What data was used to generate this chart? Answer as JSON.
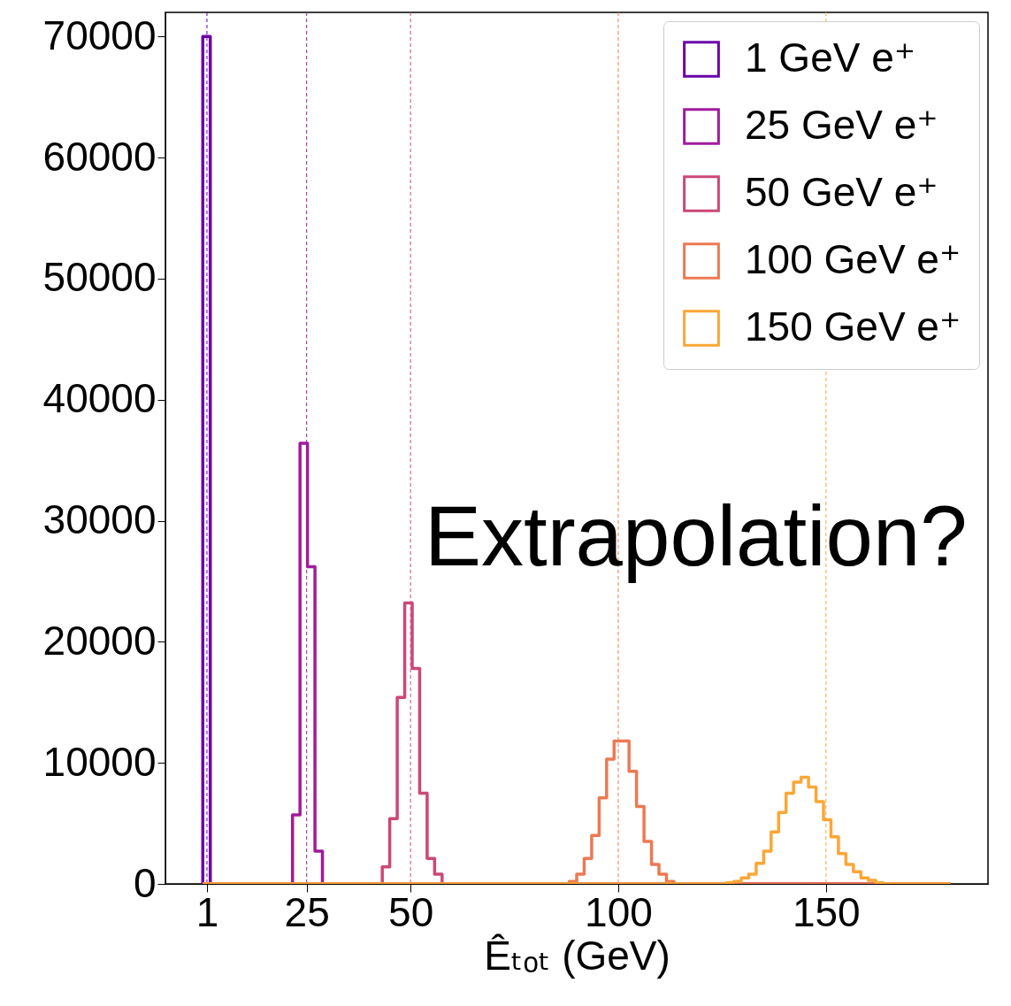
{
  "chart_data": {
    "type": "histogram",
    "xlabel": "Êₜₒₜ (GeV)",
    "xlim": [
      -9,
      189
    ],
    "ylim": [
      0,
      72000
    ],
    "xticks": [
      1,
      25,
      50,
      100,
      150
    ],
    "yticks": [
      0,
      10000,
      20000,
      30000,
      40000,
      50000,
      60000,
      70000
    ],
    "legend": "top right",
    "annotations": [
      "Extrapolation?"
    ],
    "bins": [
      0,
      1.8,
      3.6,
      5.4,
      7.2,
      9,
      10.8,
      12.6,
      14.4,
      16.2,
      18,
      19.8,
      21.6,
      23.4,
      25.2,
      27,
      28.8,
      30.6,
      32.4,
      34.2,
      36,
      37.8,
      39.6,
      41.4,
      43.2,
      45,
      46.8,
      48.6,
      50.4,
      52.2,
      54,
      55.8,
      57.6,
      59.4,
      61.2,
      63,
      64.8,
      66.6,
      68.4,
      70.2,
      72,
      73.8,
      75.6,
      77.4,
      79.2,
      81,
      82.8,
      84.6,
      86.4,
      88.2,
      90,
      91.8,
      93.6,
      95.4,
      97.2,
      99,
      100.8,
      102.6,
      104.4,
      106.2,
      108,
      109.8,
      111.6,
      113.4,
      115.2,
      117,
      118.8,
      120.6,
      122.4,
      124.2,
      126,
      127.8,
      129.6,
      131.4,
      133.2,
      135,
      136.8,
      138.6,
      140.4,
      142.2,
      144,
      145.8,
      147.6,
      149.4,
      151.2,
      153,
      154.8,
      156.6,
      158.4,
      160.2,
      162,
      163.8,
      165.6,
      167.4,
      169.2,
      171,
      172.8,
      174.6,
      176.4,
      178.2,
      180
    ],
    "series": [
      {
        "name": "1 GeV e⁺",
        "color": "#6a00a8",
        "values": [
          70000,
          0,
          0,
          0,
          0,
          0,
          0,
          0,
          0,
          0,
          0,
          0,
          0,
          0,
          0,
          0,
          0,
          0,
          0,
          0,
          0,
          0,
          0,
          0,
          0,
          0,
          0,
          0,
          0,
          0,
          0,
          0,
          0,
          0,
          0,
          0,
          0,
          0,
          0,
          0,
          0,
          0,
          0,
          0,
          0,
          0,
          0,
          0,
          0,
          0,
          0,
          0,
          0,
          0,
          0,
          0,
          0,
          0,
          0,
          0,
          0,
          0,
          0,
          0,
          0,
          0,
          0,
          0,
          0,
          0,
          0,
          0,
          0,
          0,
          0,
          0,
          0,
          0,
          0,
          0,
          0,
          0,
          0,
          0,
          0,
          0,
          0,
          0,
          0,
          0,
          0,
          0,
          0,
          0,
          0,
          0,
          0,
          0,
          0,
          0
        ]
      },
      {
        "name": "25 GeV e⁺",
        "color": "#a11b9b",
        "values": [
          0,
          0,
          0,
          0,
          0,
          0,
          0,
          0,
          0,
          0,
          0,
          0,
          5700,
          36400,
          26200,
          2700,
          0,
          0,
          0,
          0,
          0,
          0,
          0,
          0,
          0,
          0,
          0,
          0,
          0,
          0,
          0,
          0,
          0,
          0,
          0,
          0,
          0,
          0,
          0,
          0,
          0,
          0,
          0,
          0,
          0,
          0,
          0,
          0,
          0,
          0,
          0,
          0,
          0,
          0,
          0,
          0,
          0,
          0,
          0,
          0,
          0,
          0,
          0,
          0,
          0,
          0,
          0,
          0,
          0,
          0,
          0,
          0,
          0,
          0,
          0,
          0,
          0,
          0,
          0,
          0,
          0,
          0,
          0,
          0,
          0,
          0,
          0,
          0,
          0,
          0,
          0,
          0,
          0,
          0,
          0,
          0,
          0,
          0,
          0,
          0
        ]
      },
      {
        "name": "50 GeV e⁺",
        "color": "#cc4778",
        "values": [
          0,
          0,
          0,
          0,
          0,
          0,
          0,
          0,
          0,
          0,
          0,
          0,
          0,
          0,
          0,
          0,
          0,
          0,
          0,
          0,
          0,
          0,
          0,
          0,
          1400,
          5400,
          15400,
          23200,
          17800,
          7500,
          2100,
          800,
          0,
          0,
          0,
          0,
          0,
          0,
          0,
          0,
          0,
          0,
          0,
          0,
          0,
          0,
          0,
          0,
          0,
          0,
          0,
          0,
          0,
          0,
          0,
          0,
          0,
          0,
          0,
          0,
          0,
          0,
          0,
          0,
          0,
          0,
          0,
          0,
          0,
          0,
          0,
          0,
          0,
          0,
          0,
          0,
          0,
          0,
          0,
          0,
          0,
          0,
          0,
          0,
          0,
          0,
          0,
          0,
          0,
          0,
          0,
          0,
          0,
          0,
          0,
          0,
          0,
          0,
          0,
          0
        ]
      },
      {
        "name": "100 GeV e⁺",
        "color": "#ed7953",
        "values": [
          0,
          0,
          0,
          0,
          0,
          0,
          0,
          0,
          0,
          0,
          0,
          0,
          0,
          0,
          0,
          0,
          0,
          0,
          0,
          0,
          0,
          0,
          0,
          0,
          0,
          0,
          0,
          0,
          0,
          0,
          0,
          0,
          0,
          0,
          0,
          0,
          0,
          0,
          0,
          0,
          0,
          0,
          0,
          0,
          0,
          0,
          0,
          0,
          0,
          200,
          800,
          2100,
          4000,
          7100,
          10300,
          11800,
          11800,
          9300,
          6400,
          3500,
          1600,
          800,
          200,
          0,
          0,
          0,
          0,
          0,
          0,
          0,
          0,
          0,
          0,
          0,
          0,
          0,
          0,
          0,
          0,
          0,
          0,
          0,
          0,
          0,
          0,
          0,
          0,
          0,
          0,
          0,
          0,
          0,
          0,
          0,
          0,
          0,
          0,
          0,
          0,
          0
        ]
      },
      {
        "name": "150 GeV e⁺",
        "color": "#fca636",
        "values": [
          0,
          0,
          0,
          0,
          0,
          0,
          0,
          0,
          0,
          0,
          0,
          0,
          0,
          0,
          0,
          0,
          0,
          0,
          0,
          0,
          0,
          0,
          0,
          0,
          0,
          0,
          0,
          0,
          0,
          0,
          0,
          0,
          0,
          0,
          0,
          0,
          0,
          0,
          0,
          0,
          0,
          0,
          0,
          0,
          0,
          0,
          0,
          0,
          0,
          0,
          0,
          0,
          0,
          0,
          0,
          0,
          0,
          0,
          0,
          0,
          0,
          0,
          0,
          0,
          0,
          0,
          0,
          0,
          0,
          0,
          100,
          200,
          500,
          800,
          1700,
          2700,
          4300,
          5900,
          7500,
          8400,
          8800,
          8000,
          6800,
          5300,
          3900,
          2500,
          1600,
          1000,
          500,
          300,
          100,
          0,
          0,
          0,
          0,
          0,
          0,
          0,
          0,
          0
        ]
      }
    ],
    "ref_lines": [
      {
        "axis": "x",
        "value": 1,
        "color": "#6a00a8",
        "line_style": "dashed"
      },
      {
        "axis": "x",
        "value": 25,
        "color": "#a11b9b",
        "line_style": "dashed"
      },
      {
        "axis": "x",
        "value": 50,
        "color": "#cc4778",
        "line_style": "dashed"
      },
      {
        "axis": "x",
        "value": 100,
        "color": "#ed7953",
        "line_style": "dashed"
      },
      {
        "axis": "x",
        "value": 150,
        "color": "#fca636",
        "line_style": "dashed"
      }
    ]
  }
}
